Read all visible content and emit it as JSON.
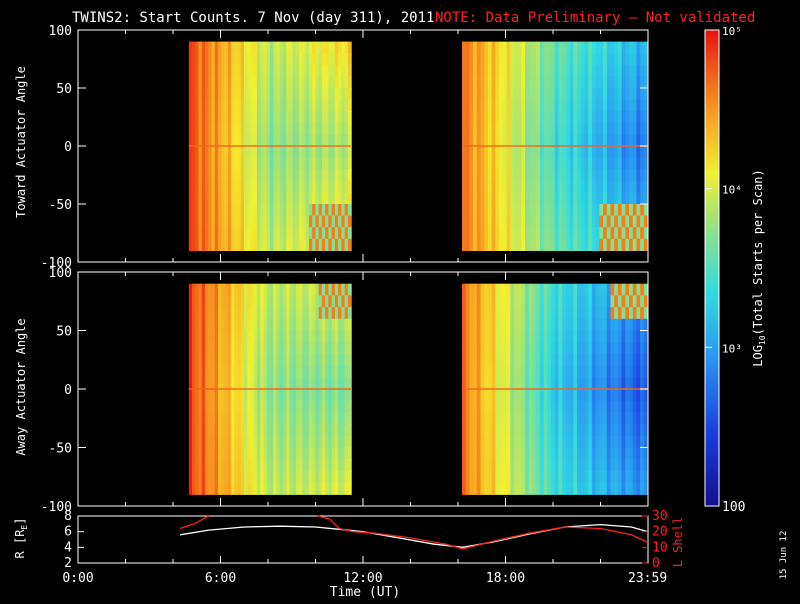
{
  "header": {
    "title": "TWINS2: Start Counts.  7 Nov (day 311), 2011",
    "note": "NOTE: Data Preliminary – Not validated"
  },
  "colors": {
    "note": "#ff2020",
    "shell_line": "#ff2020",
    "r_line": "#ffffff",
    "axis": "#ffffff",
    "background": "#000000"
  },
  "colorbar": {
    "label": "LOG10(Total Starts per Scan)",
    "label_prefix": "LOG",
    "label_sub": "10",
    "label_suffix": "(Total Starts per Scan)",
    "ticks": [
      "100",
      "10³",
      "10⁴",
      "10⁵"
    ],
    "range": [
      100,
      100000
    ],
    "scale": "log"
  },
  "date_stamp": "15 Jun 12",
  "chart_data": [
    {
      "type": "heatmap",
      "ylabel": "Toward Actuator Angle",
      "ylim": [
        -100,
        100
      ],
      "yticks": [
        "100",
        "50",
        "0",
        "-50",
        "-100"
      ],
      "x_range_hours": [
        0,
        24
      ],
      "data_blocks": [
        {
          "start": "04:40",
          "end": "11:30",
          "angle_range": [
            -90,
            90
          ],
          "dominant_log10": [
            4.8,
            3.9,
            4.2
          ]
        },
        {
          "start": "16:10",
          "end": "23:59",
          "angle_range": [
            -90,
            90
          ],
          "dominant_log10": [
            4.6,
            3.6,
            3.1
          ]
        }
      ]
    },
    {
      "type": "heatmap",
      "ylabel": "Away Actuator Angle",
      "ylim": [
        -100,
        100
      ],
      "yticks": [
        "100",
        "50",
        "0",
        "-50",
        "-100"
      ],
      "x_range_hours": [
        0,
        24
      ],
      "data_blocks": [
        {
          "start": "04:40",
          "end": "11:30",
          "angle_range": [
            -90,
            90
          ],
          "dominant_log10": [
            4.8,
            3.9,
            4.0
          ]
        },
        {
          "start": "16:10",
          "end": "23:59",
          "angle_range": [
            -90,
            90
          ],
          "dominant_log10": [
            4.6,
            3.4,
            2.9
          ]
        }
      ]
    },
    {
      "type": "line",
      "ylabel": "R [RE]",
      "ylabel_prefix": "R [R",
      "ylabel_sub": "E",
      "ylabel_suffix": "]",
      "ylim": [
        2,
        8
      ],
      "yticks": [
        "8",
        "6",
        "4",
        "2"
      ],
      "ylabel_right": "L Shell",
      "ylim_right": [
        0,
        30
      ],
      "yticks_right": [
        "30",
        "20",
        "10",
        "0"
      ],
      "xlabel": "Time (UT)",
      "xticks": [
        "0:00",
        "6:00",
        "12:00",
        "18:00",
        "23:59"
      ],
      "xtick_hours": [
        0,
        6,
        12,
        18,
        23.983
      ],
      "series": [
        {
          "axis": "left",
          "x": [
            4.3,
            5.5,
            7.0,
            8.5,
            10.0,
            11.0,
            12.0,
            13.5,
            15.0,
            16.2,
            17.5,
            19.0,
            20.5,
            22.0,
            23.3,
            24.0
          ],
          "y": [
            5.6,
            6.2,
            6.6,
            6.7,
            6.6,
            6.3,
            6.0,
            5.2,
            4.4,
            4.0,
            4.7,
            5.7,
            6.6,
            6.9,
            6.6,
            6.0
          ]
        },
        {
          "axis": "right",
          "x": [
            4.3,
            4.9,
            5.5,
            5.8,
            10.1,
            10.6,
            11.0,
            11.6,
            12.5,
            14.0,
            15.5,
            16.2,
            17.5,
            19.0,
            20.5,
            22.0,
            23.3,
            24.0
          ],
          "y": [
            22,
            25,
            30,
            null,
            30,
            28,
            22,
            20,
            19,
            16,
            12,
            9,
            14,
            19,
            23,
            22,
            18,
            13
          ]
        }
      ]
    }
  ]
}
